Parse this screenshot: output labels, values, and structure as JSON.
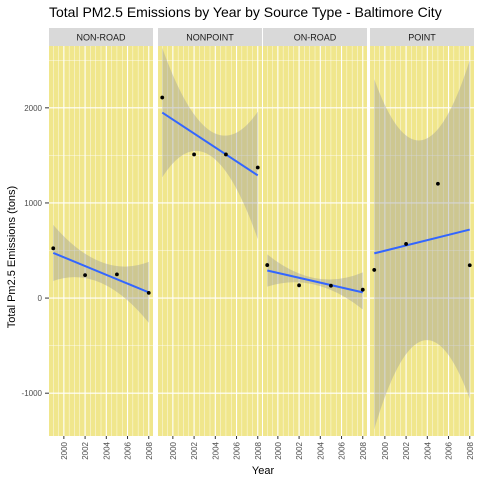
{
  "chart_data": {
    "type": "scatter",
    "title": "Total PM2.5 Emissions by Year by Source Type - Baltimore City",
    "xlabel": "Year",
    "ylabel": "Total Pm2.5 Emissions (tons)",
    "x_ticks": [
      "2000",
      "2002",
      "2004",
      "2006",
      "2008"
    ],
    "y_ticks": [
      "-1000",
      "0",
      "1000",
      "2000"
    ],
    "xlim": [
      1998.6,
      2008.4
    ],
    "ylim": [
      -1450,
      2650
    ],
    "grid": true,
    "panel_background": "#f0e68c",
    "smooth_color": "#3366ff",
    "ribbon_color": "#999999",
    "point_color": "#000000",
    "facets": [
      {
        "name": "NON-ROAD",
        "points": [
          {
            "x": 1999,
            "y": 523
          },
          {
            "x": 2002,
            "y": 241
          },
          {
            "x": 2005,
            "y": 249
          },
          {
            "x": 2008,
            "y": 55
          }
        ],
        "fit": {
          "x": [
            1999,
            2008
          ],
          "y": [
            475,
            60
          ]
        },
        "band": {
          "x": [
            1999,
            2003.5,
            2008
          ],
          "lower": [
            180,
            160,
            -260
          ],
          "upper": [
            770,
            380,
            380
          ]
        }
      },
      {
        "name": "NONPOINT",
        "points": [
          {
            "x": 1999,
            "y": 2108
          },
          {
            "x": 2002,
            "y": 1510
          },
          {
            "x": 2005,
            "y": 1510
          },
          {
            "x": 2008,
            "y": 1373
          }
        ],
        "fit": {
          "x": [
            1999,
            2008
          ],
          "y": [
            1950,
            1290
          ]
        },
        "band": {
          "x": [
            1999,
            2003.5,
            2008
          ],
          "lower": [
            1270,
            1500,
            620
          ],
          "upper": [
            2630,
            1760,
            1960
          ]
        }
      },
      {
        "name": "ON-ROAD",
        "points": [
          {
            "x": 1999,
            "y": 347
          },
          {
            "x": 2002,
            "y": 134
          },
          {
            "x": 2005,
            "y": 130
          },
          {
            "x": 2008,
            "y": 88
          }
        ],
        "fit": {
          "x": [
            1999,
            2008
          ],
          "y": [
            290,
            60
          ]
        },
        "band": {
          "x": [
            1999,
            2003.5,
            2008
          ],
          "lower": [
            120,
            140,
            -120
          ],
          "upper": [
            460,
            210,
            270
          ]
        }
      },
      {
        "name": "POINT",
        "points": [
          {
            "x": 1999,
            "y": 296
          },
          {
            "x": 2002,
            "y": 569
          },
          {
            "x": 2005,
            "y": 1202
          },
          {
            "x": 2008,
            "y": 345
          }
        ],
        "fit": {
          "x": [
            1999,
            2008
          ],
          "y": [
            470,
            720
          ]
        },
        "band": {
          "x": [
            1999,
            2003.5,
            2008
          ],
          "lower": [
            -1380,
            -450,
            -1060
          ],
          "upper": [
            2300,
            1660,
            2500
          ]
        }
      }
    ]
  }
}
